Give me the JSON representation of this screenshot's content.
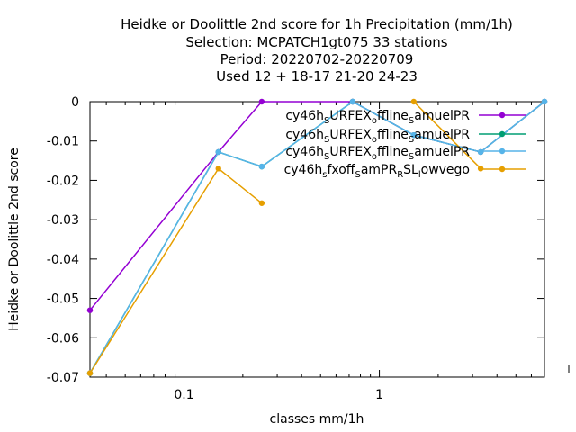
{
  "chart_data": {
    "type": "line",
    "title": [
      "Heidke or Doolittle 2nd score  for 1h Precipitation (mm/1h)",
      "Selection: MCPATCH1gt075     33 stations",
      "Period: 20220702-20220709",
      "Used  12 + 18-17 21-20 24-23"
    ],
    "xlabel": "classes mm/1h",
    "ylabel": "Heidke or Doolittle 2nd score",
    "xscale": "log",
    "xlim": [
      0.033,
      7.0
    ],
    "ylim": [
      -0.07,
      0
    ],
    "yticks": [
      "0",
      "-0.01",
      "-0.02",
      "-0.03",
      "-0.04",
      "-0.05",
      "-0.06",
      "-0.07"
    ],
    "yticks_values": [
      0,
      -0.01,
      -0.02,
      -0.03,
      -0.04,
      -0.05,
      -0.06,
      -0.07
    ],
    "xticks": [
      "0.1",
      "1"
    ],
    "xticks_values": [
      0.1,
      1
    ],
    "x": [
      0.033,
      0.15,
      0.25,
      0.73,
      1.5,
      3.3,
      7.0
    ],
    "legend_position": "top-right",
    "series": [
      {
        "name": "cy46h_S URFEX_o ffline_S amuelPR",
        "legend_parts": [
          [
            "cy46h",
            ""
          ],
          [
            "S",
            "sub"
          ],
          [
            "URFEX",
            ""
          ],
          [
            "o",
            "sub"
          ],
          [
            "ffline",
            ""
          ],
          [
            "S",
            "sub"
          ],
          [
            "amuelPR",
            ""
          ]
        ],
        "color": "#9400d3",
        "values": [
          -0.053,
          -0.0128,
          0,
          0,
          -0.0085,
          -0.0128,
          0
        ]
      },
      {
        "name": "cy46h_S URFEX_o ffline_S amuelPR",
        "legend_parts": [
          [
            "cy46h",
            ""
          ],
          [
            "S",
            "sub"
          ],
          [
            "URFEX",
            ""
          ],
          [
            "o",
            "sub"
          ],
          [
            "ffline",
            ""
          ],
          [
            "S",
            "sub"
          ],
          [
            "amuelPR",
            ""
          ]
        ],
        "color": "#009e73",
        "values": [
          -0.069,
          -0.0128,
          -0.0165,
          0,
          -0.0085,
          -0.0128,
          0
        ]
      },
      {
        "name": "cy46h_S URFEX_o ffline_S amuelPR",
        "legend_parts": [
          [
            "cy46h",
            ""
          ],
          [
            "S",
            "sub"
          ],
          [
            "URFEX",
            ""
          ],
          [
            "o",
            "sub"
          ],
          [
            "ffline",
            ""
          ],
          [
            "S",
            "sub"
          ],
          [
            "amuelPR",
            ""
          ]
        ],
        "color": "#56b4e9",
        "values": [
          -0.069,
          -0.0128,
          -0.0165,
          0,
          -0.0085,
          -0.0128,
          0
        ]
      },
      {
        "name": "cy46h_s fxoff_S amPR_R SL_l owvego",
        "legend_parts": [
          [
            "cy46h",
            ""
          ],
          [
            "s",
            "sub"
          ],
          [
            "fxoff",
            ""
          ],
          [
            "S",
            "sub"
          ],
          [
            "amPR",
            ""
          ],
          [
            "R",
            "sub"
          ],
          [
            "SL",
            ""
          ],
          [
            "l",
            "sub"
          ],
          [
            "owvego",
            ""
          ]
        ],
        "color": "#e69f00",
        "values": [
          -0.069,
          -0.017,
          -0.0258,
          null,
          0,
          -0.017,
          null
        ]
      }
    ]
  }
}
